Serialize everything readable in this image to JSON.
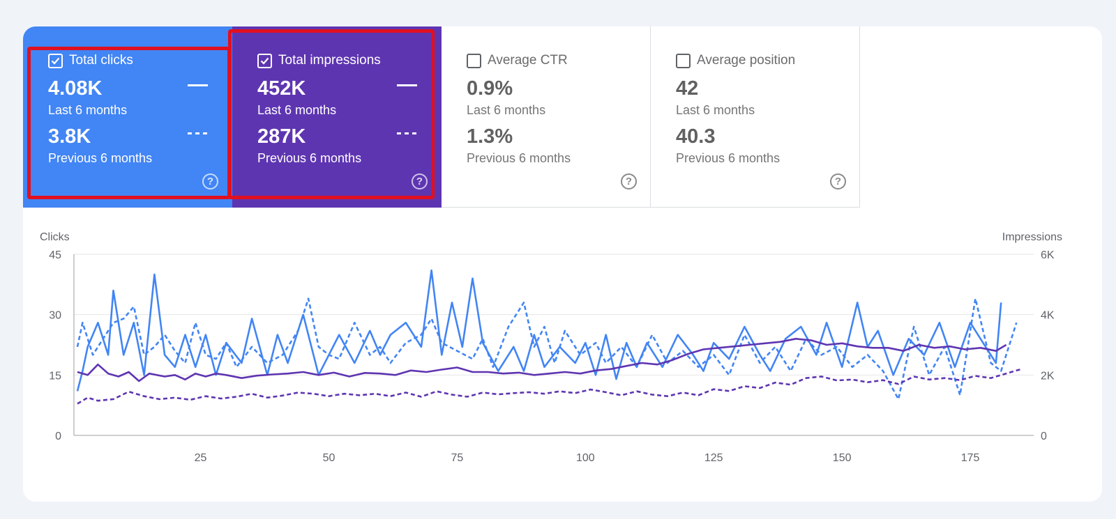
{
  "metrics": {
    "clicks": {
      "label": "Total clicks",
      "checked": true,
      "current": "4.08K",
      "current_label": "Last 6 months",
      "previous": "3.8K",
      "previous_label": "Previous 6 months",
      "color": "#4285f4"
    },
    "impressions": {
      "label": "Total impressions",
      "checked": true,
      "current": "452K",
      "current_label": "Last 6 months",
      "previous": "287K",
      "previous_label": "Previous 6 months",
      "color": "#5e35b1"
    },
    "ctr": {
      "label": "Average CTR",
      "checked": false,
      "current": "0.9%",
      "current_label": "Last 6 months",
      "previous": "1.3%",
      "previous_label": "Previous 6 months"
    },
    "position": {
      "label": "Average position",
      "checked": false,
      "current": "42",
      "current_label": "Last 6 months",
      "previous": "40.3",
      "previous_label": "Previous 6 months"
    }
  },
  "chart_data": {
    "type": "line",
    "left_axis_title": "Clicks",
    "right_axis_title": "Impressions",
    "y_left": {
      "min": 0,
      "max": 45,
      "ticks": [
        "0",
        "15",
        "30",
        "45"
      ]
    },
    "y_right": {
      "min": 0,
      "max": 6000,
      "ticks": [
        "0",
        "2K",
        "4K",
        "6K"
      ]
    },
    "x_ticks": [
      "25",
      "50",
      "75",
      "100",
      "125",
      "150",
      "175"
    ],
    "x_tick_values": [
      25,
      50,
      75,
      100,
      125,
      150,
      175
    ],
    "x_range": [
      1,
      186
    ],
    "series": [
      {
        "name": "Clicks (Last 6 months)",
        "axis": "left",
        "style": "solid",
        "color": "#4285f4",
        "anchors": [
          [
            1,
            11
          ],
          [
            2,
            16
          ],
          [
            3,
            22
          ],
          [
            5,
            28
          ],
          [
            7,
            20
          ],
          [
            8,
            36
          ],
          [
            10,
            20
          ],
          [
            12,
            28
          ],
          [
            14,
            15
          ],
          [
            16,
            40
          ],
          [
            18,
            20
          ],
          [
            20,
            17
          ],
          [
            22,
            25
          ],
          [
            24,
            17
          ],
          [
            26,
            25
          ],
          [
            28,
            15
          ],
          [
            30,
            23
          ],
          [
            33,
            18
          ],
          [
            35,
            29
          ],
          [
            38,
            15
          ],
          [
            40,
            25
          ],
          [
            42,
            18
          ],
          [
            45,
            30
          ],
          [
            48,
            15
          ],
          [
            52,
            25
          ],
          [
            55,
            18
          ],
          [
            58,
            26
          ],
          [
            60,
            20
          ],
          [
            62,
            25
          ],
          [
            65,
            28
          ],
          [
            68,
            22
          ],
          [
            70,
            41
          ],
          [
            72,
            20
          ],
          [
            74,
            33
          ],
          [
            76,
            22
          ],
          [
            78,
            39
          ],
          [
            80,
            23
          ],
          [
            83,
            16
          ],
          [
            86,
            22
          ],
          [
            88,
            16
          ],
          [
            90,
            25
          ],
          [
            92,
            17
          ],
          [
            95,
            22
          ],
          [
            98,
            18
          ],
          [
            100,
            23
          ],
          [
            102,
            15
          ],
          [
            104,
            25
          ],
          [
            106,
            14
          ],
          [
            108,
            23
          ],
          [
            110,
            17
          ],
          [
            112,
            23
          ],
          [
            115,
            17
          ],
          [
            118,
            25
          ],
          [
            121,
            20
          ],
          [
            123,
            16
          ],
          [
            125,
            23
          ],
          [
            128,
            19
          ],
          [
            131,
            27
          ],
          [
            134,
            20
          ],
          [
            136,
            16
          ],
          [
            139,
            24
          ],
          [
            142,
            27
          ],
          [
            145,
            20
          ],
          [
            147,
            28
          ],
          [
            150,
            17
          ],
          [
            153,
            33
          ],
          [
            155,
            22
          ],
          [
            157,
            26
          ],
          [
            160,
            15
          ],
          [
            163,
            24
          ],
          [
            166,
            20
          ],
          [
            169,
            28
          ],
          [
            172,
            17
          ],
          [
            175,
            28
          ],
          [
            178,
            22
          ],
          [
            180,
            18
          ],
          [
            181,
            33
          ]
        ]
      },
      {
        "name": "Clicks (Previous 6 months)",
        "axis": "left",
        "style": "dashed",
        "color": "#4285f4",
        "anchors": [
          [
            1,
            22
          ],
          [
            2,
            28
          ],
          [
            4,
            20
          ],
          [
            6,
            24
          ],
          [
            8,
            28
          ],
          [
            10,
            29
          ],
          [
            12,
            32
          ],
          [
            14,
            20
          ],
          [
            16,
            22
          ],
          [
            18,
            25
          ],
          [
            20,
            21
          ],
          [
            22,
            18
          ],
          [
            24,
            28
          ],
          [
            26,
            20
          ],
          [
            28,
            19
          ],
          [
            30,
            23
          ],
          [
            32,
            17
          ],
          [
            35,
            22
          ],
          [
            38,
            18
          ],
          [
            41,
            20
          ],
          [
            44,
            26
          ],
          [
            46,
            34
          ],
          [
            48,
            22
          ],
          [
            50,
            20
          ],
          [
            52,
            19
          ],
          [
            55,
            28
          ],
          [
            58,
            20
          ],
          [
            60,
            22
          ],
          [
            62,
            18
          ],
          [
            65,
            23
          ],
          [
            68,
            25
          ],
          [
            70,
            29
          ],
          [
            72,
            23
          ],
          [
            75,
            21
          ],
          [
            78,
            19
          ],
          [
            80,
            24
          ],
          [
            82,
            17
          ],
          [
            85,
            27
          ],
          [
            88,
            33
          ],
          [
            90,
            22
          ],
          [
            92,
            27
          ],
          [
            94,
            18
          ],
          [
            96,
            26
          ],
          [
            99,
            20
          ],
          [
            102,
            23
          ],
          [
            104,
            18
          ],
          [
            107,
            22
          ],
          [
            110,
            17
          ],
          [
            113,
            25
          ],
          [
            116,
            18
          ],
          [
            119,
            21
          ],
          [
            122,
            17
          ],
          [
            125,
            20
          ],
          [
            128,
            15
          ],
          [
            131,
            25
          ],
          [
            134,
            18
          ],
          [
            137,
            22
          ],
          [
            140,
            16
          ],
          [
            143,
            24
          ],
          [
            146,
            20
          ],
          [
            149,
            22
          ],
          [
            152,
            17
          ],
          [
            155,
            20
          ],
          [
            158,
            16
          ],
          [
            161,
            9
          ],
          [
            164,
            27
          ],
          [
            167,
            15
          ],
          [
            170,
            22
          ],
          [
            173,
            10
          ],
          [
            176,
            34
          ],
          [
            179,
            18
          ],
          [
            181,
            16
          ],
          [
            184,
            28
          ]
        ]
      },
      {
        "name": "Impressions (Last 6 months)",
        "axis": "right",
        "style": "solid",
        "color": "#5e35b1",
        "anchors": [
          [
            1,
            2100
          ],
          [
            3,
            2000
          ],
          [
            5,
            2350
          ],
          [
            7,
            2050
          ],
          [
            9,
            1950
          ],
          [
            11,
            2100
          ],
          [
            13,
            1800
          ],
          [
            15,
            2050
          ],
          [
            18,
            1950
          ],
          [
            20,
            2000
          ],
          [
            22,
            1850
          ],
          [
            24,
            2050
          ],
          [
            26,
            1950
          ],
          [
            28,
            2050
          ],
          [
            30,
            2000
          ],
          [
            33,
            1900
          ],
          [
            36,
            1980
          ],
          [
            39,
            2020
          ],
          [
            42,
            2050
          ],
          [
            45,
            2100
          ],
          [
            48,
            2000
          ],
          [
            51,
            2080
          ],
          [
            54,
            1950
          ],
          [
            57,
            2070
          ],
          [
            60,
            2050
          ],
          [
            63,
            2000
          ],
          [
            66,
            2150
          ],
          [
            69,
            2100
          ],
          [
            72,
            2180
          ],
          [
            75,
            2250
          ],
          [
            78,
            2100
          ],
          [
            81,
            2100
          ],
          [
            84,
            2050
          ],
          [
            87,
            2080
          ],
          [
            90,
            2000
          ],
          [
            93,
            2050
          ],
          [
            96,
            2100
          ],
          [
            99,
            2050
          ],
          [
            102,
            2150
          ],
          [
            105,
            2200
          ],
          [
            108,
            2300
          ],
          [
            111,
            2400
          ],
          [
            114,
            2350
          ],
          [
            117,
            2500
          ],
          [
            120,
            2700
          ],
          [
            123,
            2850
          ],
          [
            126,
            2900
          ],
          [
            129,
            2950
          ],
          [
            132,
            3000
          ],
          [
            135,
            3050
          ],
          [
            138,
            3100
          ],
          [
            141,
            3200
          ],
          [
            144,
            3150
          ],
          [
            147,
            3000
          ],
          [
            150,
            3050
          ],
          [
            153,
            2950
          ],
          [
            156,
            2900
          ],
          [
            159,
            2900
          ],
          [
            162,
            2800
          ],
          [
            165,
            3000
          ],
          [
            168,
            2900
          ],
          [
            171,
            2950
          ],
          [
            174,
            2850
          ],
          [
            177,
            2900
          ],
          [
            180,
            2800
          ],
          [
            182,
            3000
          ]
        ]
      },
      {
        "name": "Impressions (Previous 6 months)",
        "axis": "right",
        "style": "dashed",
        "color": "#5e35b1",
        "anchors": [
          [
            1,
            1050
          ],
          [
            3,
            1250
          ],
          [
            5,
            1150
          ],
          [
            8,
            1200
          ],
          [
            11,
            1450
          ],
          [
            14,
            1300
          ],
          [
            17,
            1200
          ],
          [
            20,
            1250
          ],
          [
            23,
            1180
          ],
          [
            26,
            1300
          ],
          [
            29,
            1220
          ],
          [
            32,
            1280
          ],
          [
            35,
            1380
          ],
          [
            38,
            1250
          ],
          [
            41,
            1320
          ],
          [
            44,
            1420
          ],
          [
            47,
            1380
          ],
          [
            50,
            1300
          ],
          [
            53,
            1380
          ],
          [
            56,
            1330
          ],
          [
            59,
            1380
          ],
          [
            62,
            1300
          ],
          [
            65,
            1420
          ],
          [
            68,
            1280
          ],
          [
            71,
            1460
          ],
          [
            74,
            1350
          ],
          [
            77,
            1280
          ],
          [
            80,
            1420
          ],
          [
            83,
            1360
          ],
          [
            86,
            1400
          ],
          [
            89,
            1430
          ],
          [
            92,
            1380
          ],
          [
            95,
            1460
          ],
          [
            98,
            1400
          ],
          [
            101,
            1520
          ],
          [
            104,
            1430
          ],
          [
            107,
            1330
          ],
          [
            110,
            1460
          ],
          [
            113,
            1350
          ],
          [
            116,
            1300
          ],
          [
            119,
            1420
          ],
          [
            122,
            1330
          ],
          [
            125,
            1530
          ],
          [
            128,
            1470
          ],
          [
            131,
            1630
          ],
          [
            134,
            1570
          ],
          [
            137,
            1750
          ],
          [
            140,
            1680
          ],
          [
            143,
            1900
          ],
          [
            146,
            1950
          ],
          [
            149,
            1820
          ],
          [
            152,
            1850
          ],
          [
            155,
            1760
          ],
          [
            158,
            1830
          ],
          [
            161,
            1700
          ],
          [
            164,
            1950
          ],
          [
            167,
            1850
          ],
          [
            170,
            1900
          ],
          [
            173,
            1830
          ],
          [
            176,
            1970
          ],
          [
            179,
            1900
          ],
          [
            182,
            2050
          ],
          [
            185,
            2200
          ]
        ]
      }
    ]
  }
}
